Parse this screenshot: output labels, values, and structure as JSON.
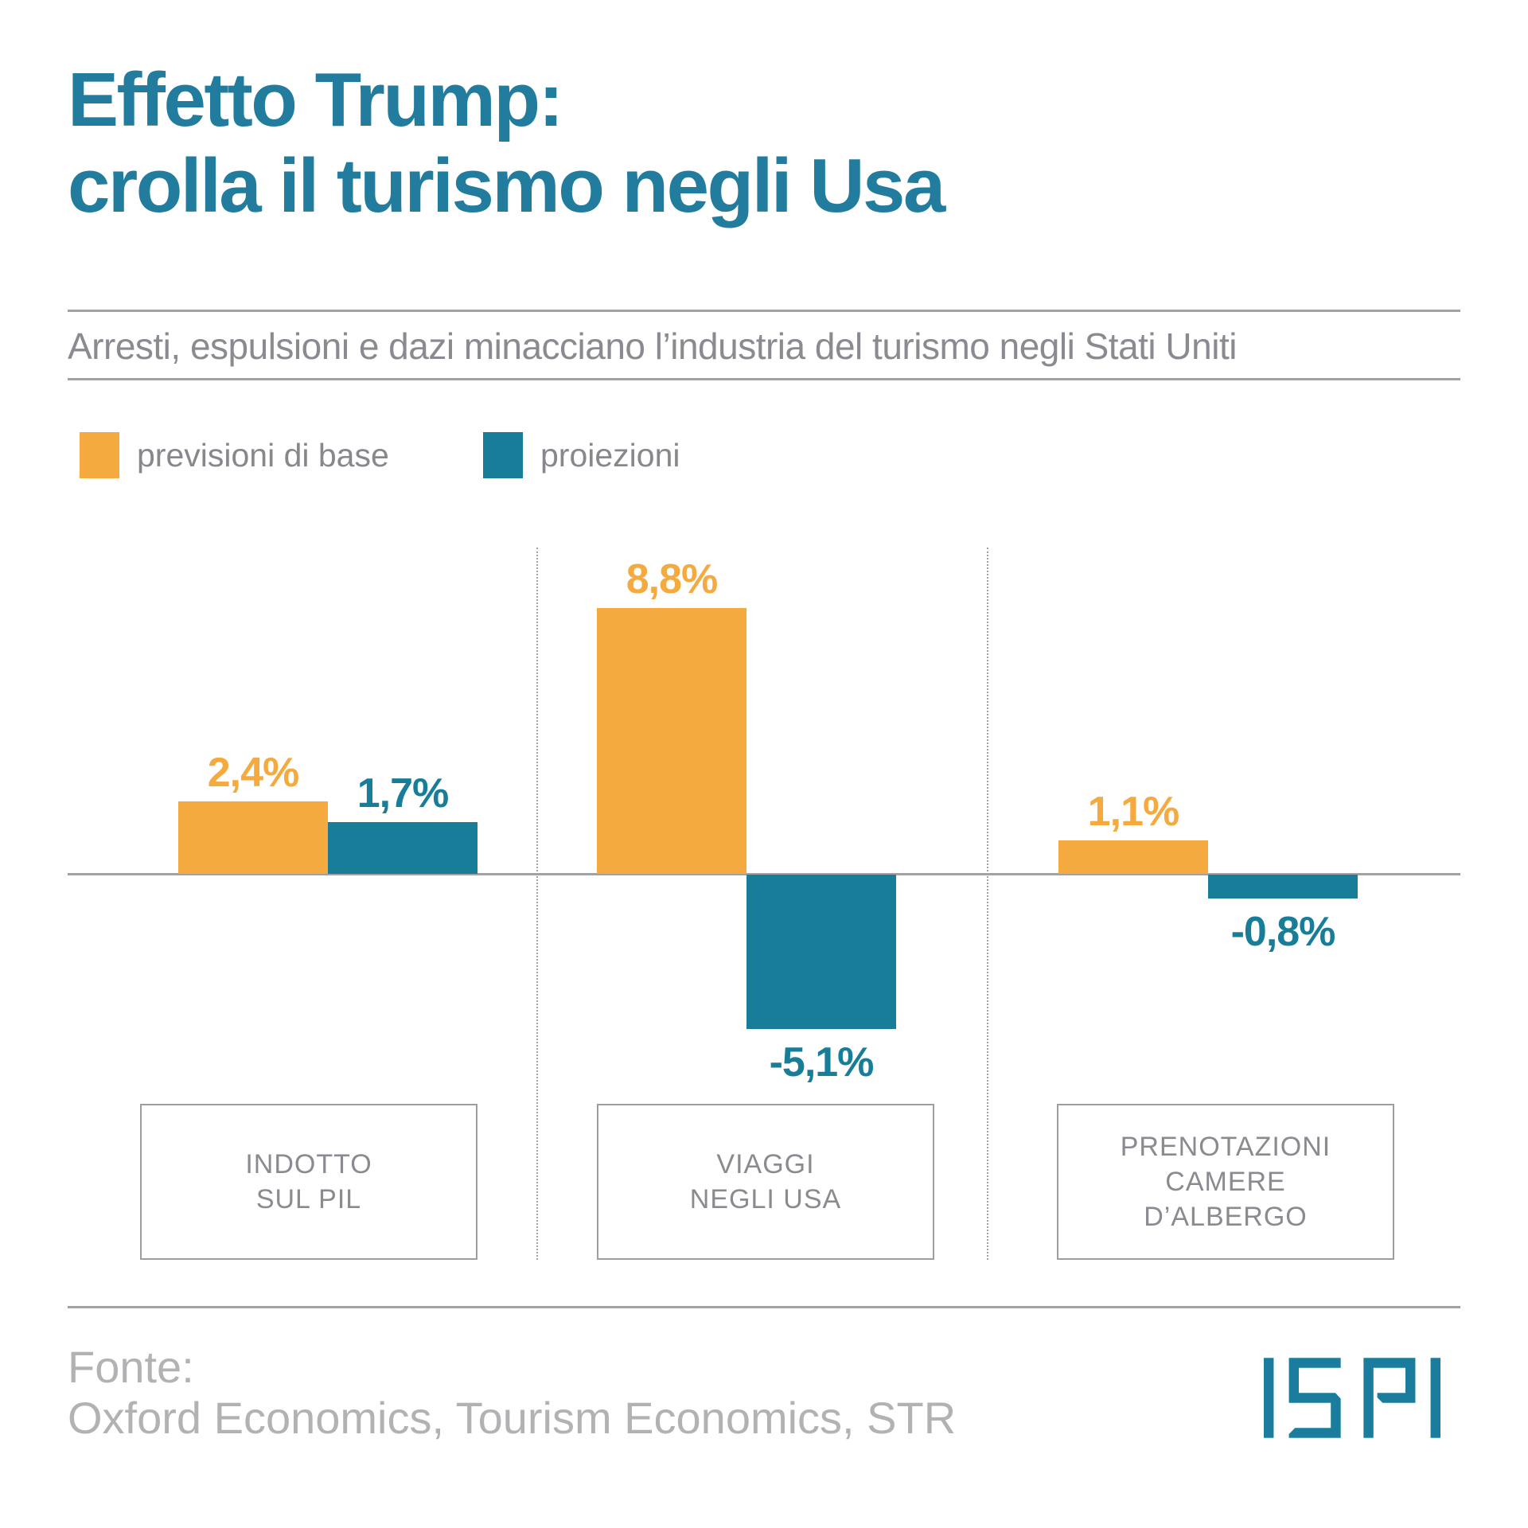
{
  "header": {
    "title_lines": [
      "Effetto Trump:",
      "crolla il turismo negli Usa"
    ],
    "subtitle": "Arresti, espulsioni e dazi minacciano l’industria del turismo negli Stati Uniti"
  },
  "legend": {
    "items": [
      {
        "label": "previsioni di base",
        "color": "#F5AA3F"
      },
      {
        "label": "proiezioni",
        "color": "#187D99"
      }
    ]
  },
  "chart_data": {
    "type": "bar",
    "title": "Effetto Trump: crolla il turismo negli Usa",
    "subtitle": "Arresti, espulsioni e dazi minacciano l’industria del turismo negli Stati Uniti",
    "unit": "%",
    "baseline": 0,
    "grid": false,
    "legend_position": "top-left",
    "categories": [
      "INDOTTO\nSUL PIL",
      "VIAGGI\nNEGLI USA",
      "PRENOTAZIONI\nCAMERE\nD’ALBERGO"
    ],
    "series": [
      {
        "name": "previsioni di base",
        "color": "#F5AA3F",
        "values": [
          2.4,
          8.8,
          1.1
        ],
        "value_labels": [
          "2,4%",
          "8,8%",
          "1,1%"
        ]
      },
      {
        "name": "proiezioni",
        "color": "#187D99",
        "values": [
          1.7,
          -5.1,
          -0.8
        ],
        "value_labels": [
          "1,7%",
          "-5,1%",
          "-0,8%"
        ]
      }
    ]
  },
  "footer": {
    "source_label": "Fonte:",
    "source_text": "Oxford Economics, Tourism Economics, STR",
    "logo_text": "ISPI"
  },
  "palette": {
    "title_color": "#227C9E",
    "orange": "#F5AA3F",
    "teal": "#187D99",
    "logo_teal": "#1A7D9E",
    "gray_text": "#8A8A90",
    "rule_gray": "#A2A2A6"
  }
}
